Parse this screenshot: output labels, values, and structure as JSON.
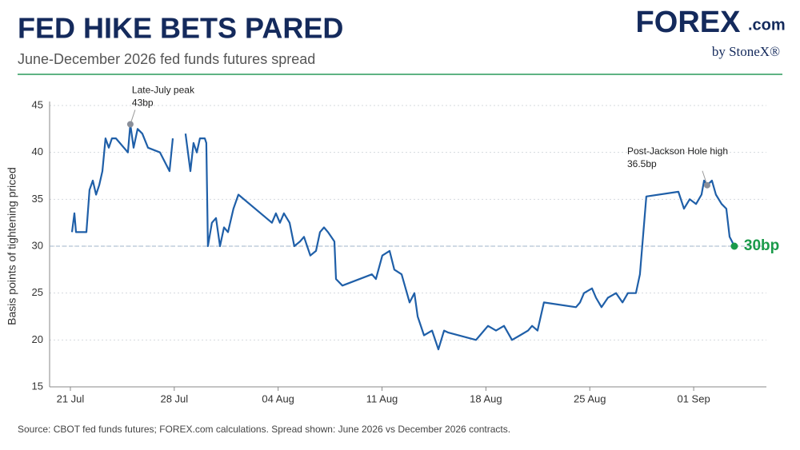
{
  "chart_data": {
    "type": "line",
    "title": "FED HIKE BETS PARED",
    "subtitle": "June-December 2026 fed funds futures spread",
    "logo": {
      "brand": "FOREX",
      "suffix": ".com",
      "byline": "by StoneX®"
    },
    "y_label": "Basis points of tightening priced",
    "source": "Source: CBOT fed funds futures; FOREX.com calculations. Spread shown: June 2026 vs December 2026 contracts.",
    "xlim": [
      19.6,
      67.9
    ],
    "ylim": [
      15,
      45
    ],
    "yticks": [
      15,
      20,
      25,
      30,
      35,
      40,
      45
    ],
    "xticks": [
      {
        "value": 21,
        "label": "21 Jul"
      },
      {
        "value": 28,
        "label": "28 Jul"
      },
      {
        "value": 35,
        "label": "04 Aug"
      },
      {
        "value": 42,
        "label": "11 Aug"
      },
      {
        "value": 49,
        "label": "18 Aug"
      },
      {
        "value": 56,
        "label": "25 Aug"
      },
      {
        "value": 63,
        "label": "01 Sep"
      }
    ],
    "grid": true,
    "reference_line": {
      "value": 30,
      "color": "#9fb3c8"
    },
    "series": [
      {
        "name": "June-December spread",
        "color": "#1f5fa8",
        "x": [
          21.11,
          21.27,
          21.38,
          21.81,
          22.08,
          22.29,
          22.51,
          22.73,
          22.94,
          23.16,
          23.37,
          23.59,
          23.8,
          24.07,
          24.88,
          25.04,
          25.26,
          25.53,
          25.85,
          26.23,
          27.04,
          27.68,
          27.9,
          28.3,
          28.76,
          29.09,
          29.3,
          29.52,
          29.73,
          30.06,
          30.16,
          30.27,
          30.54,
          30.81,
          31.08,
          31.35,
          31.62,
          31.99,
          32.32,
          34.58,
          34.85,
          35.12,
          35.39,
          35.77,
          36.09,
          36.47,
          36.74,
          37.17,
          37.55,
          37.82,
          38.09,
          38.36,
          38.79,
          38.9,
          39.33,
          41.32,
          41.59,
          42.02,
          42.51,
          42.83,
          43.32,
          43.86,
          44.18,
          44.4,
          44.83,
          45.37,
          45.8,
          46.18,
          46.44,
          48.33,
          48.6,
          49.14,
          49.68,
          50.22,
          50.76,
          51.3,
          51.84,
          52.11,
          52.48,
          52.91,
          55.07,
          55.34,
          55.61,
          56.15,
          56.42,
          56.79,
          57.22,
          57.77,
          58.2,
          58.57,
          59.11,
          59.38,
          59.81,
          61.97,
          62.35,
          62.73,
          63.16,
          63.53,
          63.7,
          63.91,
          64.23,
          64.5,
          64.88,
          65.2,
          65.42,
          65.58,
          65.74
        ],
        "values": [
          31.5,
          33.5,
          31.5,
          31.5,
          31.5,
          36,
          37,
          35.5,
          36.5,
          38,
          41.5,
          40.5,
          41.5,
          41.5,
          40,
          43,
          40.5,
          42.5,
          42,
          40.5,
          40,
          38,
          41.5,
          null,
          42,
          38,
          41,
          40,
          41.5,
          41.5,
          41,
          30,
          32.5,
          33,
          30,
          32,
          31.5,
          34,
          35.5,
          32.5,
          33.5,
          32.5,
          33.5,
          32.5,
          30,
          30.5,
          31,
          29,
          29.5,
          31.5,
          32,
          31.5,
          30.5,
          26.5,
          25.8,
          27,
          26.5,
          29,
          29.5,
          27.5,
          27,
          24,
          25,
          22.5,
          20.5,
          21,
          19,
          21,
          20.8,
          20,
          20.5,
          21.5,
          21,
          21.5,
          20,
          20.5,
          21,
          21.5,
          21,
          24,
          23.5,
          24,
          25,
          25.5,
          24.5,
          23.5,
          24.5,
          25,
          24,
          25,
          25,
          27,
          35.3,
          35.8,
          34,
          35,
          34.5,
          35.5,
          37,
          36.5,
          37,
          35.5,
          34.5,
          34,
          31,
          30.5,
          30
        ]
      }
    ],
    "annotations": [
      {
        "label": "Late-July peak",
        "value_label": "43bp",
        "x": 25.04,
        "y": 43,
        "color": "#8a8f99"
      },
      {
        "label": "Post-Jackson Hole high",
        "value_label": "36.5bp",
        "x": 63.91,
        "y": 36.5,
        "color": "#8a8f99"
      }
    ],
    "end_label": {
      "value_label": "30bp",
      "x": 65.74,
      "y": 30,
      "color": "#1a9a4a"
    }
  }
}
